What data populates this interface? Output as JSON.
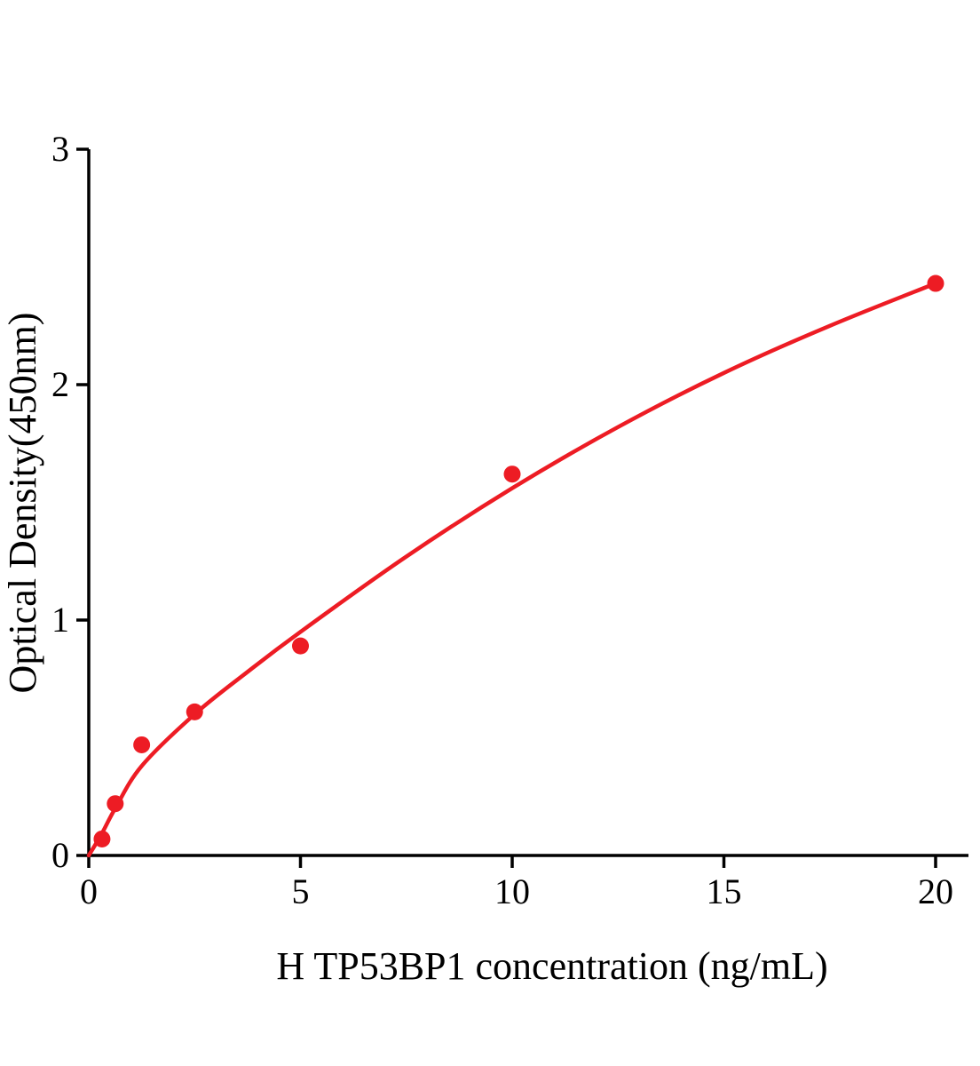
{
  "figure": {
    "kind": "ELISA standard curve",
    "background": "#ffffff",
    "axis_color": "#000000",
    "accent_color": "#ed1c24"
  },
  "chart_data": {
    "type": "scatter",
    "title": "",
    "xlabel": "H TP53BP1 concentration (ng/mL)",
    "ylabel": "Optical Density(450nm)",
    "xlim": [
      0,
      20.8
    ],
    "ylim": [
      0,
      3
    ],
    "x_ticks": [
      "0",
      "5",
      "10",
      "15",
      "20"
    ],
    "x_tick_values": [
      0,
      5,
      10,
      15,
      20
    ],
    "y_ticks": [
      "0",
      "1",
      "2",
      "3"
    ],
    "y_tick_values": [
      0,
      1,
      2,
      3
    ],
    "grid": false,
    "legend_position": "none",
    "series": [
      {
        "name": "H TP53BP1 standard",
        "marker": "circle",
        "color": "#ed1c24",
        "points": [
          [
            0.313,
            0.07
          ],
          [
            0.625,
            0.22
          ],
          [
            1.25,
            0.47
          ],
          [
            2.5,
            0.61
          ],
          [
            5,
            0.89
          ],
          [
            10,
            1.62
          ],
          [
            20,
            2.43
          ]
        ]
      }
    ],
    "fit_curve": {
      "name": "fitted curve",
      "color": "#ed1c24",
      "points": [
        [
          0,
          0.0
        ],
        [
          0.3,
          0.09
        ],
        [
          0.625,
          0.2
        ],
        [
          1.25,
          0.38
        ],
        [
          2.5,
          0.6
        ],
        [
          3.75,
          0.78
        ],
        [
          5,
          0.95
        ],
        [
          7.5,
          1.27
        ],
        [
          10,
          1.56
        ],
        [
          12.5,
          1.82
        ],
        [
          15,
          2.05
        ],
        [
          17.5,
          2.25
        ],
        [
          20,
          2.43
        ]
      ]
    }
  }
}
